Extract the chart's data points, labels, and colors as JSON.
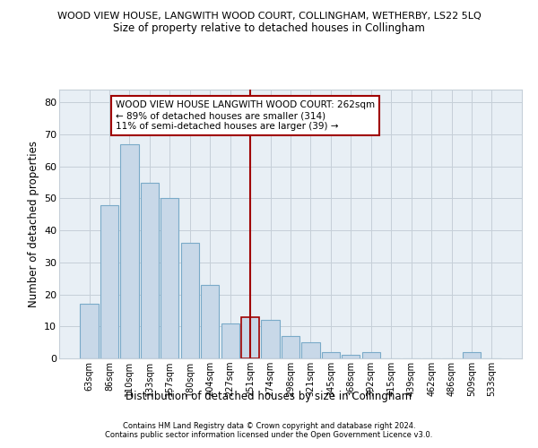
{
  "title": "WOOD VIEW HOUSE, LANGWITH WOOD COURT, COLLINGHAM, WETHERBY, LS22 5LQ",
  "subtitle": "Size of property relative to detached houses in Collingham",
  "xlabel": "Distribution of detached houses by size in Collingham",
  "ylabel": "Number of detached properties",
  "categories": [
    "63sqm",
    "86sqm",
    "110sqm",
    "133sqm",
    "157sqm",
    "180sqm",
    "204sqm",
    "227sqm",
    "251sqm",
    "274sqm",
    "298sqm",
    "321sqm",
    "345sqm",
    "368sqm",
    "392sqm",
    "415sqm",
    "439sqm",
    "462sqm",
    "486sqm",
    "509sqm",
    "533sqm"
  ],
  "values": [
    17,
    48,
    67,
    55,
    50,
    36,
    23,
    11,
    13,
    12,
    7,
    5,
    2,
    1,
    2,
    0,
    0,
    0,
    0,
    2,
    0
  ],
  "bar_color": "#c8d8e8",
  "bar_edge_color": "#7aaac8",
  "highlight_index": 8,
  "highlight_edge_color": "#a00000",
  "vline_color": "#a00000",
  "annotation_title": "WOOD VIEW HOUSE LANGWITH WOOD COURT: 262sqm",
  "annotation_line1": "← 89% of detached houses are smaller (314)",
  "annotation_line2": "11% of semi-detached houses are larger (39) →",
  "annotation_box_color": "#ffffff",
  "annotation_box_edge": "#a00000",
  "ylim": [
    0,
    84
  ],
  "yticks": [
    0,
    10,
    20,
    30,
    40,
    50,
    60,
    70,
    80
  ],
  "footer1": "Contains HM Land Registry data © Crown copyright and database right 2024.",
  "footer2": "Contains public sector information licensed under the Open Government Licence v3.0.",
  "plot_bg_color": "#e8eff5",
  "grid_color": "#c5cfd8"
}
